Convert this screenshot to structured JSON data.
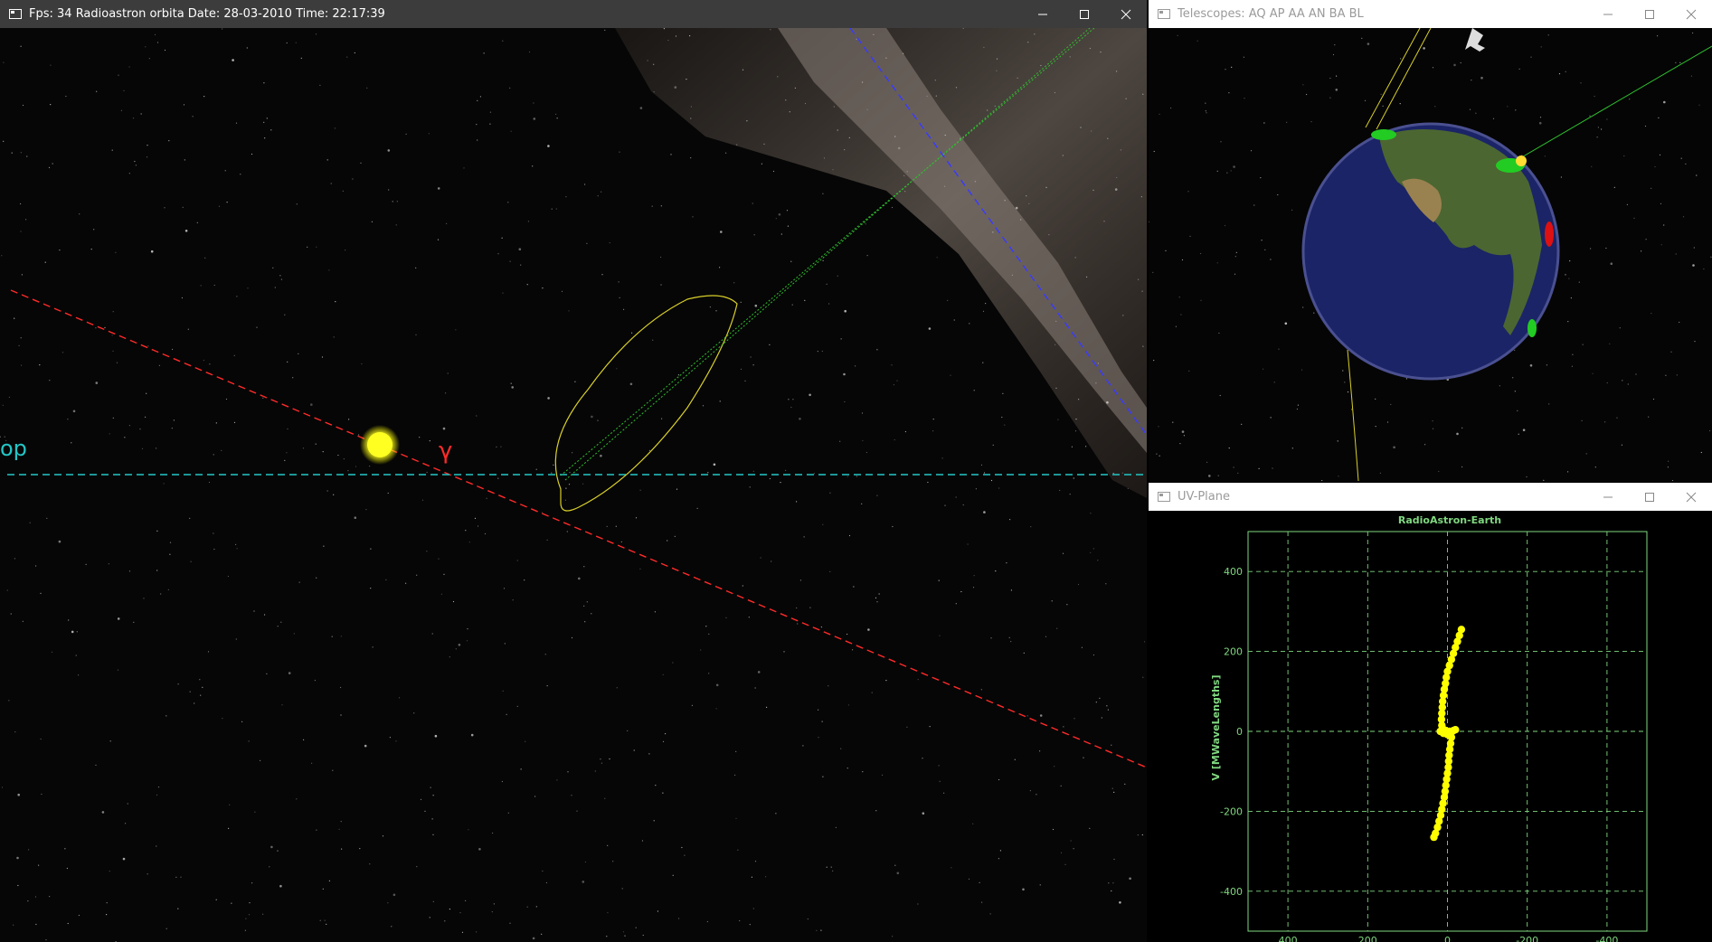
{
  "main_window": {
    "title": "Fps: 34 Radioastron orbita Date: 28-03-2010 Time: 22:17:39",
    "labels": {
      "gamma": "γ",
      "edge_label": "op"
    }
  },
  "telescopes_window": {
    "title": "Telescopes: AQ AP AA AN BA BL"
  },
  "uv_window": {
    "title": "UV-Plane"
  },
  "window_controls": {
    "minimize": "—",
    "maximize": "☐",
    "close": "✕"
  },
  "colors": {
    "ecliptic": "#ff2a2a",
    "equator": "#23c6c6",
    "galactic": "#3a3aff",
    "orbit": "#d8cf2a",
    "beam": "#2fbf2f",
    "sun": "#ffff22",
    "uv_axes": "#7fd77f",
    "uv_points": "#ffff00"
  },
  "chart_data": {
    "type": "scatter",
    "title": "RadioAstron-Earth",
    "xlabel": "",
    "ylabel": "V [MWaveLengths]",
    "xlim": [
      500,
      -500
    ],
    "ylim": [
      -500,
      500
    ],
    "x_ticks": [
      400,
      200,
      0,
      -200,
      -400
    ],
    "y_ticks": [
      400,
      200,
      0,
      -200,
      -400
    ],
    "grid": true,
    "series": [
      {
        "points": [
          [
            -35,
            255
          ],
          [
            -30,
            240
          ],
          [
            -25,
            225
          ],
          [
            -20,
            210
          ],
          [
            -15,
            195
          ],
          [
            -10,
            180
          ],
          [
            -5,
            165
          ],
          [
            0,
            150
          ],
          [
            3,
            135
          ],
          [
            5,
            120
          ],
          [
            8,
            105
          ],
          [
            10,
            90
          ],
          [
            12,
            75
          ],
          [
            13,
            60
          ],
          [
            14,
            45
          ],
          [
            15,
            30
          ],
          [
            14,
            15
          ],
          [
            10,
            5
          ],
          [
            5,
            2
          ],
          [
            -5,
            0
          ],
          [
            -15,
            2
          ],
          [
            -20,
            4
          ],
          [
            -10,
            -2
          ],
          [
            0,
            -8
          ],
          [
            10,
            -5
          ],
          [
            18,
            0
          ],
          [
            -10,
            -15
          ],
          [
            -8,
            -30
          ],
          [
            -6,
            -45
          ],
          [
            -4,
            -60
          ],
          [
            -3,
            -75
          ],
          [
            -2,
            -90
          ],
          [
            0,
            -105
          ],
          [
            2,
            -120
          ],
          [
            4,
            -135
          ],
          [
            6,
            -150
          ],
          [
            8,
            -165
          ],
          [
            11,
            -180
          ],
          [
            14,
            -195
          ],
          [
            17,
            -210
          ],
          [
            21,
            -225
          ],
          [
            25,
            -240
          ],
          [
            30,
            -255
          ],
          [
            34,
            -265
          ]
        ]
      }
    ]
  }
}
